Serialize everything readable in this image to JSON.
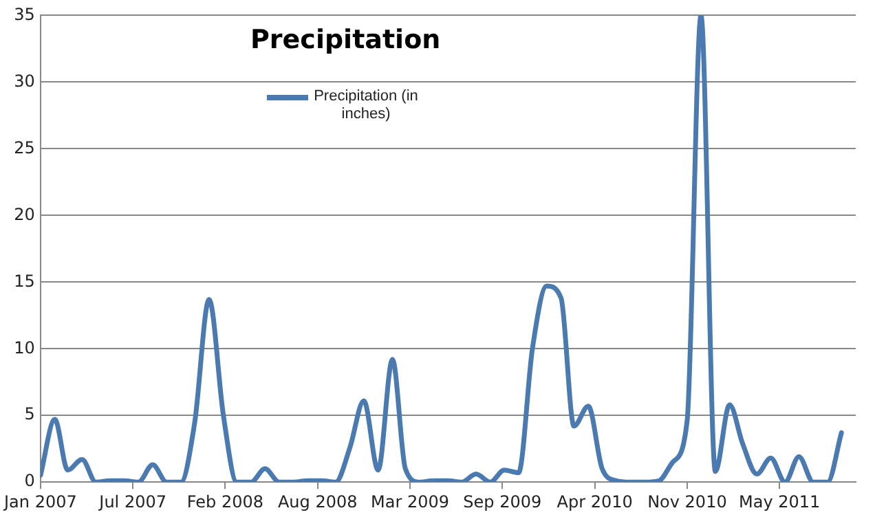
{
  "chart_data": {
    "type": "line",
    "title": "Precipitation",
    "x": [
      "2007-01",
      "2007-02",
      "2007-03",
      "2007-04",
      "2007-05",
      "2007-06",
      "2007-07",
      "2007-08",
      "2007-09",
      "2007-10",
      "2007-11",
      "2007-12",
      "2008-01",
      "2008-02",
      "2008-03",
      "2008-04",
      "2008-05",
      "2008-06",
      "2008-07",
      "2008-08",
      "2008-09",
      "2008-10",
      "2008-11",
      "2008-12",
      "2009-01",
      "2009-02",
      "2009-03",
      "2009-04",
      "2009-05",
      "2009-06",
      "2009-07",
      "2009-08",
      "2009-09",
      "2009-10",
      "2009-11",
      "2009-12",
      "2010-01",
      "2010-02",
      "2010-03",
      "2010-04",
      "2010-05",
      "2010-06",
      "2010-07",
      "2010-08",
      "2010-09",
      "2010-10",
      "2010-11",
      "2010-12",
      "2011-01",
      "2011-02",
      "2011-03",
      "2011-04",
      "2011-05",
      "2011-06",
      "2011-07",
      "2011-08",
      "2011-09",
      "2011-10"
    ],
    "series": [
      {
        "name": "Precipitation (in inches)",
        "color": "#4a7ab0",
        "values": [
          0.5,
          4.7,
          0.9,
          1.7,
          0,
          0.1,
          0.1,
          0,
          1.3,
          0,
          0,
          4.5,
          13.7,
          5,
          0,
          0,
          1.0,
          0,
          0,
          0.1,
          0.1,
          0,
          2.6,
          6.1,
          0.9,
          9.2,
          1.0,
          0,
          0.1,
          0.1,
          0,
          0.6,
          0,
          0.9,
          0.7,
          10,
          14.7,
          13.8,
          4.2,
          5.7,
          1.0,
          0.1,
          0,
          0,
          0.1,
          1.5,
          4.6,
          35,
          0.8,
          5.8,
          2.9,
          0.6,
          1.8,
          0,
          1.9,
          0,
          0,
          3.7
        ]
      }
    ],
    "xlim": [
      "2007-01-01",
      "2011-11-01"
    ],
    "xticks": [
      {
        "value": "2007-01-01",
        "label": "Jan 2007"
      },
      {
        "value": "2007-07-20",
        "label": "Jul 2007"
      },
      {
        "value": "2008-02-05",
        "label": "Feb 2008"
      },
      {
        "value": "2008-08-23",
        "label": "Aug 2008"
      },
      {
        "value": "2009-03-11",
        "label": "Mar 2009"
      },
      {
        "value": "2009-09-27",
        "label": "Sep 2009"
      },
      {
        "value": "2010-04-15",
        "label": "Apr 2010"
      },
      {
        "value": "2010-11-01",
        "label": "Nov 2010"
      },
      {
        "value": "2011-05-20",
        "label": "May 2011"
      }
    ],
    "ylim": [
      0,
      35
    ],
    "yticks": [
      0,
      5,
      10,
      15,
      20,
      25,
      30,
      35
    ],
    "grid": "y",
    "legend": "top left",
    "marker": "none",
    "line_style": "solid"
  }
}
